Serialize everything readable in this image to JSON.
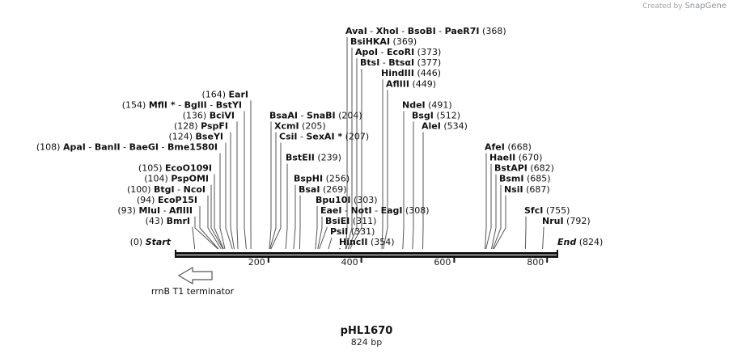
{
  "credit": {
    "prefix": "Created by",
    "brand": "SnapGene"
  },
  "plasmid": {
    "name": "pHL1670",
    "size_label": "824 bp",
    "length_bp": 824
  },
  "axis": {
    "ticks": [
      200,
      400,
      600,
      800
    ]
  },
  "feature": {
    "label": "rrnB T1 terminator",
    "direction": "reverse"
  },
  "sites": [
    {
      "row": 0,
      "parts": [
        "AvaI",
        "XhoI",
        "BsoBI",
        "PaeR7I"
      ],
      "pos": 368,
      "side": "right"
    },
    {
      "row": 1,
      "parts": [
        "BsiHKAI"
      ],
      "pos": 369,
      "side": "right"
    },
    {
      "row": 2,
      "parts": [
        "ApoI",
        "EcoRI"
      ],
      "pos": 373,
      "side": "right"
    },
    {
      "row": 3,
      "parts": [
        "BtsI",
        "BtsαI"
      ],
      "pos": 377,
      "side": "right"
    },
    {
      "row": 4,
      "parts": [
        "HindIII"
      ],
      "pos": 446,
      "side": "right"
    },
    {
      "row": 5,
      "parts": [
        "AflIII"
      ],
      "pos": 449,
      "side": "right"
    },
    {
      "row": 6,
      "parts": [
        "EarI"
      ],
      "pos": 164,
      "side": "left"
    },
    {
      "row": 7,
      "parts": [
        "MflI *",
        "BglII",
        "BstYI"
      ],
      "pos": 154,
      "side": "left"
    },
    {
      "row": 7,
      "parts": [
        "NdeI"
      ],
      "pos": 491,
      "side": "right"
    },
    {
      "row": 8,
      "parts": [
        "BciVI"
      ],
      "pos": 136,
      "side": "left"
    },
    {
      "row": 8,
      "parts": [
        "BsaAI",
        "SnaBI"
      ],
      "pos": 204,
      "side": "right"
    },
    {
      "row": 8,
      "parts": [
        "BsgI"
      ],
      "pos": 512,
      "side": "right"
    },
    {
      "row": 9,
      "parts": [
        "PspFI"
      ],
      "pos": 128,
      "side": "left"
    },
    {
      "row": 9,
      "parts": [
        "XcmI"
      ],
      "pos": 205,
      "side": "right"
    },
    {
      "row": 9,
      "parts": [
        "AleI"
      ],
      "pos": 534,
      "side": "right"
    },
    {
      "row": 10,
      "parts": [
        "BseYI"
      ],
      "pos": 124,
      "side": "left"
    },
    {
      "row": 10,
      "parts": [
        "CsiI",
        "SexAI *"
      ],
      "pos": 207,
      "side": "right"
    },
    {
      "row": 11,
      "parts": [
        "ApaI",
        "BanII",
        "BaeGI",
        "Bme1580I"
      ],
      "pos": 108,
      "side": "left"
    },
    {
      "row": 11,
      "parts": [
        "AfeI"
      ],
      "pos": 668,
      "side": "right"
    },
    {
      "row": 12,
      "parts": [
        "BstEII"
      ],
      "pos": 239,
      "side": "right"
    },
    {
      "row": 12,
      "parts": [
        "HaeII"
      ],
      "pos": 670,
      "side": "right"
    },
    {
      "row": 13,
      "parts": [
        "EcoO109I"
      ],
      "pos": 105,
      "side": "left"
    },
    {
      "row": 13,
      "parts": [
        "BstAPI"
      ],
      "pos": 682,
      "side": "right"
    },
    {
      "row": 14,
      "parts": [
        "BspHI"
      ],
      "pos": 256,
      "side": "right"
    },
    {
      "row": 14,
      "parts": [
        "PspOMI"
      ],
      "pos": 104,
      "side": "left"
    },
    {
      "row": 14,
      "parts": [
        "BsmI"
      ],
      "pos": 685,
      "side": "right"
    },
    {
      "row": 15,
      "parts": [
        "BsaI"
      ],
      "pos": 269,
      "side": "right"
    },
    {
      "row": 15,
      "parts": [
        "BtgI",
        "NcoI"
      ],
      "pos": 100,
      "side": "left"
    },
    {
      "row": 15,
      "parts": [
        "NsiI"
      ],
      "pos": 687,
      "side": "right"
    },
    {
      "row": 16,
      "parts": [
        "EcoP15I"
      ],
      "pos": 94,
      "side": "left"
    },
    {
      "row": 16,
      "parts": [
        "Bpu10I"
      ],
      "pos": 303,
      "side": "right"
    },
    {
      "row": 17,
      "parts": [
        "MluI",
        "AflIII"
      ],
      "pos": 93,
      "side": "left"
    },
    {
      "row": 17,
      "parts": [
        "EaeI",
        "NotI",
        "EagI"
      ],
      "pos": 308,
      "side": "right"
    },
    {
      "row": 17,
      "parts": [
        "SfcI"
      ],
      "pos": 755,
      "side": "right"
    },
    {
      "row": 18,
      "parts": [
        "BsiEI"
      ],
      "pos": 311,
      "side": "right"
    },
    {
      "row": 18,
      "parts": [
        "BmrI"
      ],
      "pos": 43,
      "side": "left"
    },
    {
      "row": 18,
      "parts": [
        "NruI"
      ],
      "pos": 792,
      "side": "right"
    },
    {
      "row": 19,
      "parts": [
        "PsiI"
      ],
      "pos": 331,
      "side": "right"
    },
    {
      "row": 20,
      "parts": [
        "Start"
      ],
      "pos": 0,
      "side": "left",
      "italic": true
    },
    {
      "row": 20,
      "parts": [
        "HincII"
      ],
      "pos": 354,
      "side": "right"
    },
    {
      "row": 20,
      "parts": [
        "End"
      ],
      "pos": 824,
      "side": "right",
      "italic": true
    }
  ]
}
